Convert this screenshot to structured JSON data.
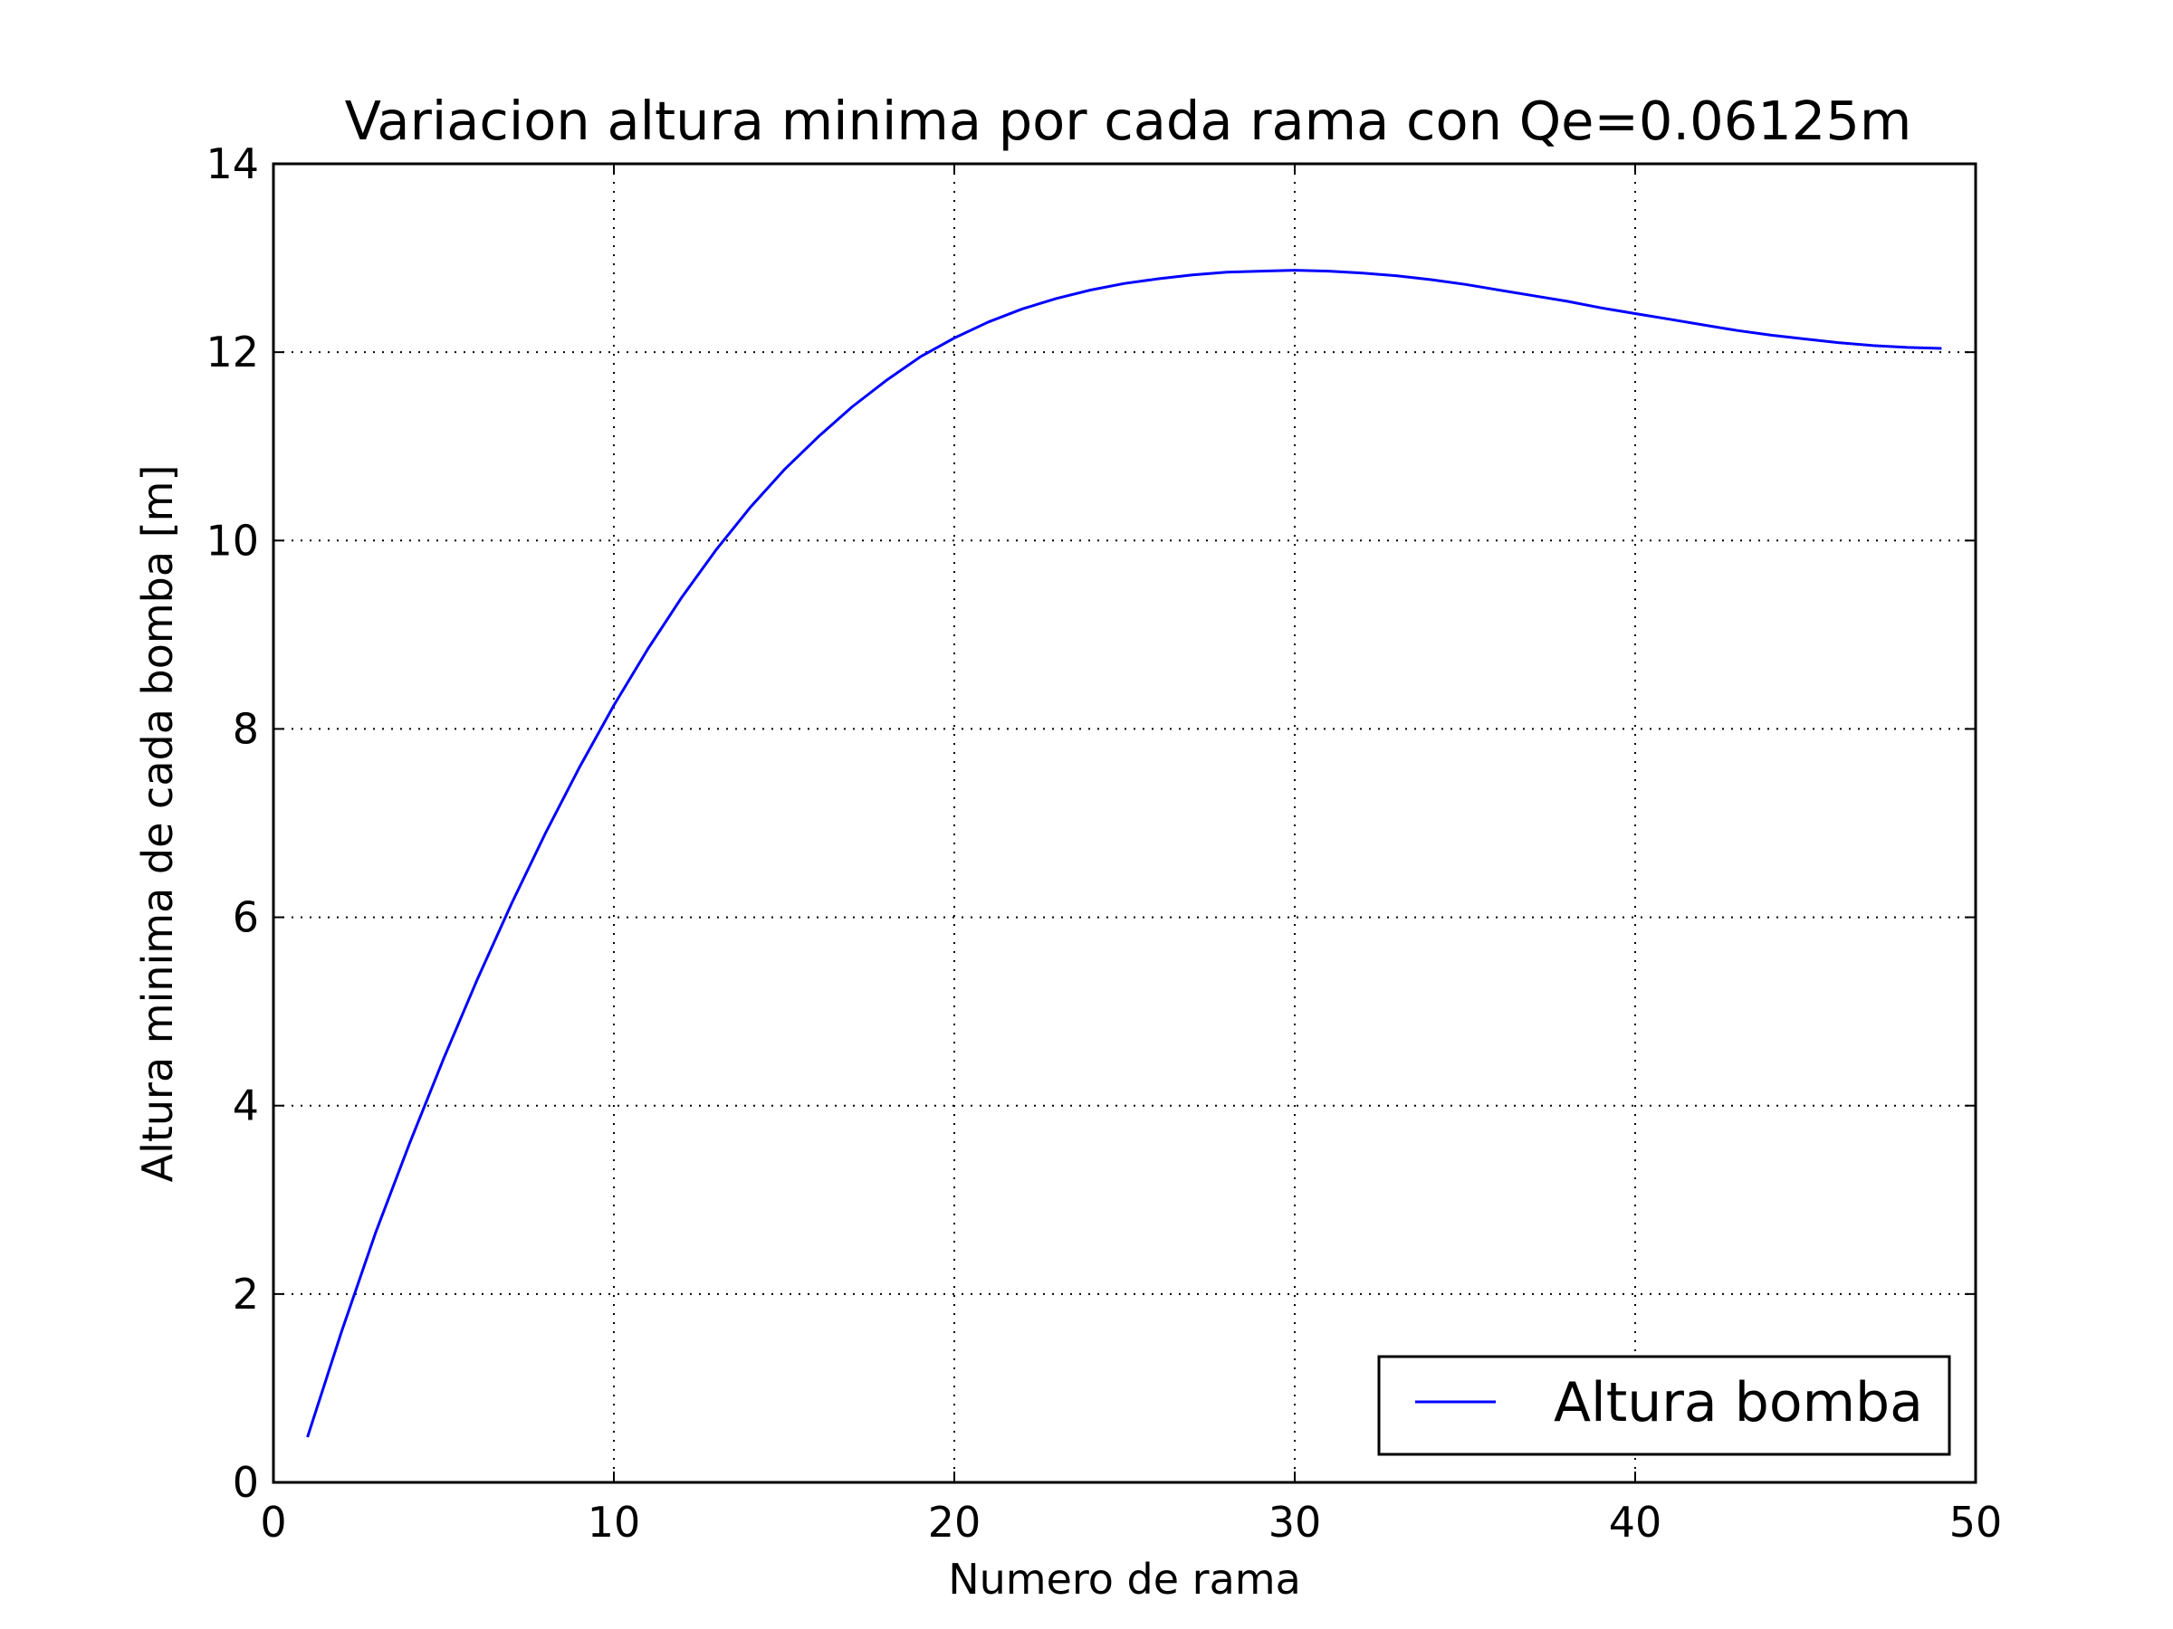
{
  "chart_data": {
    "type": "line",
    "title": "Variacion altura minima por cada rama con Qe=0.06125m",
    "xlabel": "Numero de rama",
    "ylabel": "Altura minima de cada bomba [m]",
    "xlim": [
      0,
      50
    ],
    "ylim": [
      0,
      14
    ],
    "xticks": [
      0,
      10,
      20,
      30,
      40,
      50
    ],
    "yticks": [
      0,
      2,
      4,
      6,
      8,
      10,
      12,
      14
    ],
    "grid": true,
    "legend_position": "lower-right",
    "series": [
      {
        "name": "Altura bomba",
        "color": "#0000ff",
        "x": [
          1,
          2,
          3,
          4,
          5,
          6,
          7,
          8,
          9,
          10,
          11,
          12,
          13,
          14,
          15,
          16,
          17,
          18,
          19,
          20,
          21,
          22,
          23,
          24,
          25,
          26,
          27,
          28,
          29,
          30,
          31,
          32,
          33,
          34,
          35,
          36,
          37,
          38,
          39,
          40,
          41,
          42,
          43,
          44,
          45,
          46,
          47,
          48,
          49
        ],
        "y": [
          0.48,
          1.6,
          2.65,
          3.6,
          4.5,
          5.35,
          6.15,
          6.9,
          7.6,
          8.25,
          8.85,
          9.4,
          9.9,
          10.35,
          10.75,
          11.1,
          11.42,
          11.7,
          11.95,
          12.15,
          12.32,
          12.46,
          12.57,
          12.66,
          12.73,
          12.78,
          12.82,
          12.85,
          12.86,
          12.87,
          12.86,
          12.84,
          12.81,
          12.77,
          12.72,
          12.66,
          12.6,
          12.54,
          12.47,
          12.41,
          12.35,
          12.29,
          12.23,
          12.18,
          12.14,
          12.1,
          12.07,
          12.05,
          12.04
        ]
      }
    ]
  }
}
